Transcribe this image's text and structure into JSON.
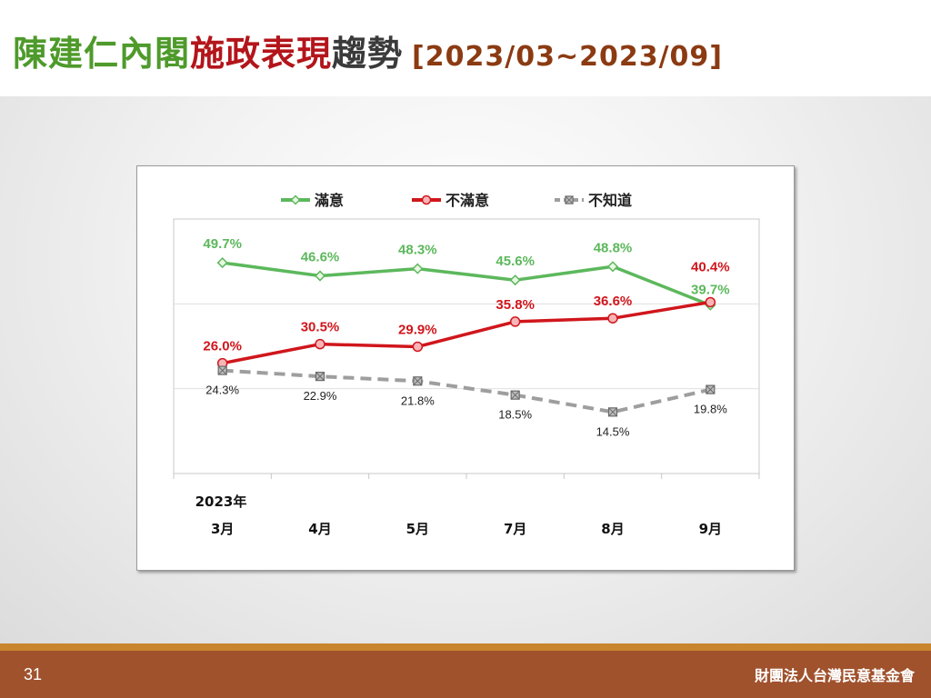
{
  "slide": {
    "title_parts": [
      {
        "text": "陳建仁內閣",
        "color": "#4e9a2b"
      },
      {
        "text": "施政表現",
        "color": "#b3151b"
      },
      {
        "text": "趨勢",
        "color": "#3a3a3a"
      }
    ],
    "title_range": "[2023/03~2023/09]",
    "title_range_color": "#8b3a12",
    "page_number": "31",
    "organization": "財團法人台灣民意基金會"
  },
  "chart_data": {
    "type": "line",
    "year_label": "2023年",
    "categories": [
      "3月",
      "4月",
      "5月",
      "7月",
      "8月",
      "9月"
    ],
    "ylim": [
      0,
      60
    ],
    "grid": true,
    "legend_position": "top",
    "series": [
      {
        "name": "滿意",
        "color": "#5cb85c",
        "style": "solid",
        "marker": "diamond",
        "values": [
          49.7,
          46.6,
          48.3,
          45.6,
          48.8,
          39.7
        ],
        "labels": [
          "49.7%",
          "46.6%",
          "48.3%",
          "45.6%",
          "48.8%",
          "39.7%"
        ]
      },
      {
        "name": "不滿意",
        "color": "#d0161c",
        "style": "solid",
        "marker": "circle",
        "values": [
          26.0,
          30.5,
          29.9,
          35.8,
          36.6,
          40.4
        ],
        "labels": [
          "26.0%",
          "30.5%",
          "29.9%",
          "35.8%",
          "36.6%",
          "40.4%"
        ]
      },
      {
        "name": "不知道",
        "color": "#9e9e9e",
        "style": "dashed",
        "marker": "square-x",
        "values": [
          24.3,
          22.9,
          21.8,
          18.5,
          14.5,
          19.8
        ],
        "labels": [
          "24.3%",
          "22.9%",
          "21.8%",
          "18.5%",
          "14.5%",
          "19.8%"
        ]
      }
    ]
  }
}
